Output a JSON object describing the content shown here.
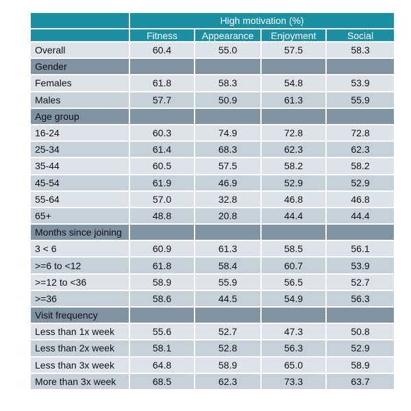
{
  "header": {
    "group_title": "High motivation (%)",
    "columns": [
      "Fitness",
      "Appearance",
      "Enjoyment",
      "Social"
    ]
  },
  "rows": [
    {
      "type": "data",
      "shade": "light",
      "label": "Overall",
      "values": [
        "60.4",
        "55.0",
        "57.5",
        "58.3"
      ]
    },
    {
      "type": "section",
      "label": "Gender"
    },
    {
      "type": "data",
      "shade": "light",
      "label": "Females",
      "values": [
        "61.8",
        "58.3",
        "54.8",
        "53.9"
      ]
    },
    {
      "type": "data",
      "shade": "mid",
      "label": "Males",
      "values": [
        "57.7",
        "50.9",
        "61.3",
        "55.9"
      ]
    },
    {
      "type": "section",
      "label": "Age group"
    },
    {
      "type": "data",
      "shade": "light",
      "label": "16-24",
      "values": [
        "60.3",
        "74.9",
        "72.8",
        "72.8"
      ]
    },
    {
      "type": "data",
      "shade": "mid",
      "label": "25-34",
      "values": [
        "61.4",
        "68.3",
        "62.3",
        "62.3"
      ]
    },
    {
      "type": "data",
      "shade": "light",
      "label": "35-44",
      "values": [
        "60.5",
        "57.5",
        "58.2",
        "58.2"
      ]
    },
    {
      "type": "data",
      "shade": "mid",
      "label": "45-54",
      "values": [
        "61.9",
        "46.9",
        "52.9",
        "52.9"
      ]
    },
    {
      "type": "data",
      "shade": "light",
      "label": "55-64",
      "values": [
        "57.0",
        "32.8",
        "46.8",
        "46.8"
      ]
    },
    {
      "type": "data",
      "shade": "mid",
      "label": "65+",
      "values": [
        "48.8",
        "20.8",
        "44.4",
        "44.4"
      ]
    },
    {
      "type": "section",
      "label": "Months since joining"
    },
    {
      "type": "data",
      "shade": "light",
      "label": "3 < 6",
      "values": [
        "60.9",
        "61.3",
        "58.5",
        "56.1"
      ]
    },
    {
      "type": "data",
      "shade": "mid",
      "label": ">=6 to <12",
      "values": [
        "61.8",
        "58.4",
        "60.7",
        "53.9"
      ]
    },
    {
      "type": "data",
      "shade": "light",
      "label": ">=12 to <36",
      "values": [
        "58.9",
        "55.9",
        "56.5",
        "52.7"
      ]
    },
    {
      "type": "data",
      "shade": "mid",
      "label": ">=36",
      "values": [
        "58.6",
        "44.5",
        "54.9",
        "56.3"
      ]
    },
    {
      "type": "section",
      "label": "Visit frequency"
    },
    {
      "type": "data",
      "shade": "light",
      "label": "Less than 1x week",
      "values": [
        "55.6",
        "52.7",
        "47.3",
        "50.8"
      ]
    },
    {
      "type": "data",
      "shade": "mid",
      "label": "Less than 2x week",
      "values": [
        "58.1",
        "52.8",
        "56.3",
        "52.9"
      ]
    },
    {
      "type": "data",
      "shade": "light",
      "label": "Less than 3x week",
      "values": [
        "64.8",
        "58.9",
        "65.0",
        "58.9"
      ]
    },
    {
      "type": "data",
      "shade": "mid",
      "label": "More than 3x week",
      "values": [
        "68.5",
        "62.3",
        "73.3",
        "63.7"
      ]
    }
  ],
  "colors": {
    "header": "#1b8fa3",
    "section": "#7f93a2",
    "row_light": "#dde3e8",
    "row_mid": "#c6d0d9"
  }
}
